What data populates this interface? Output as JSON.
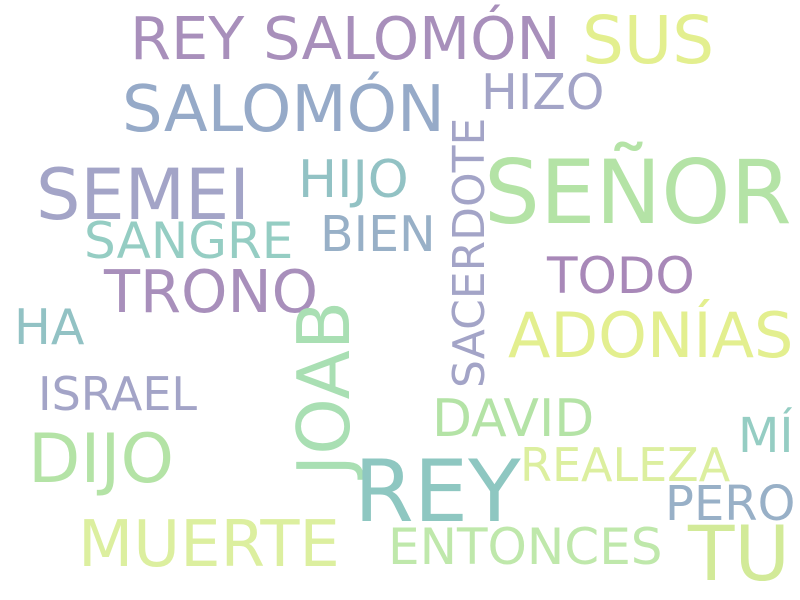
{
  "words": [
    {
      "text": "REY SALOMÓN",
      "color": "#a88fbb"
    },
    {
      "text": "SUS",
      "color": "#e3ef8f"
    },
    {
      "text": "HIZO",
      "color": "#a3a4c7"
    },
    {
      "text": "SALOMÓN",
      "color": "#96aac8"
    },
    {
      "text": "SEMEI",
      "color": "#a3a4c7"
    },
    {
      "text": "HIJO",
      "color": "#92c2c4"
    },
    {
      "text": "SACERDOTE",
      "color": "#a3a4c7"
    },
    {
      "text": "SEÑOR",
      "color": "#b4e3a6"
    },
    {
      "text": "SANGRE",
      "color": "#95cdc3"
    },
    {
      "text": "BIEN",
      "color": "#98b0c7"
    },
    {
      "text": "TRONO",
      "color": "#a88fbb"
    },
    {
      "text": "TODO",
      "color": "#a888b8"
    },
    {
      "text": "HA",
      "color": "#92c2c4"
    },
    {
      "text": "JOAB",
      "color": "#a9dfb3"
    },
    {
      "text": "ADONÍAS",
      "color": "#e3ef8f"
    },
    {
      "text": "ISRAEL",
      "color": "#a3a4c7"
    },
    {
      "text": "DAVID",
      "color": "#b4e3a6"
    },
    {
      "text": "MÍ",
      "color": "#95cdc3"
    },
    {
      "text": "DIJO",
      "color": "#b4e3a6"
    },
    {
      "text": "REY",
      "color": "#8ec7c1"
    },
    {
      "text": "REALEZA",
      "color": "#dcef9f"
    },
    {
      "text": "PERO",
      "color": "#98b0c7"
    },
    {
      "text": "MUERTE",
      "color": "#dcef9f"
    },
    {
      "text": "ENTONCES",
      "color": "#bfe8ab"
    },
    {
      "text": "TU",
      "color": "#d2ea98"
    }
  ]
}
